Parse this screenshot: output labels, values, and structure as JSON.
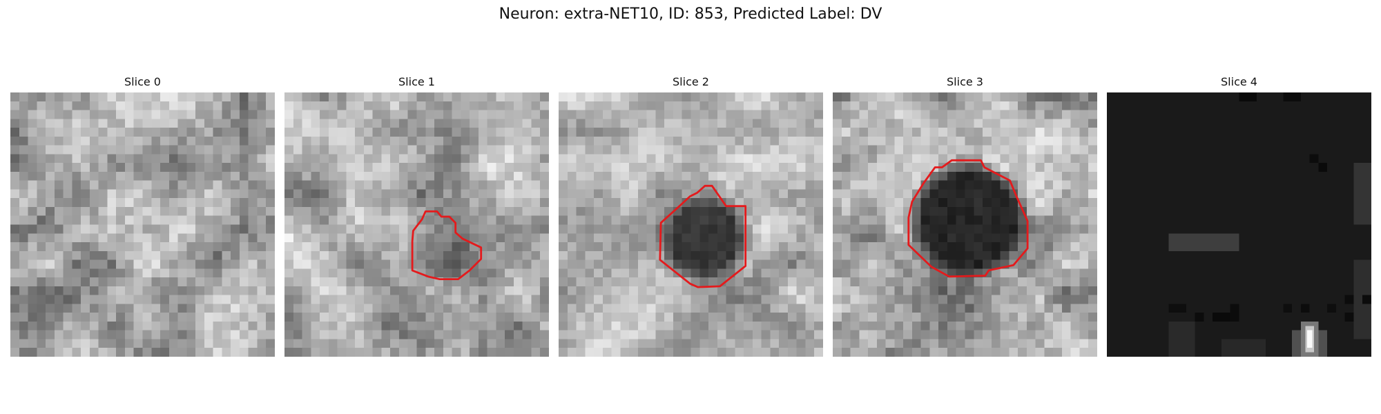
{
  "figure": {
    "title": "Neuron: extra-NET10, ID: 853, Predicted Label: DV"
  },
  "slices": [
    {
      "title": "Slice 0",
      "has_contour": false,
      "kind": "texture",
      "mean": 160,
      "contrast": 55,
      "seed": 11
    },
    {
      "title": "Slice 1",
      "has_contour": true,
      "kind": "texture",
      "mean": 170,
      "contrast": 50,
      "seed": 23
    },
    {
      "title": "Slice 2",
      "has_contour": true,
      "kind": "texture",
      "mean": 175,
      "contrast": 45,
      "seed": 37
    },
    {
      "title": "Slice 3",
      "has_contour": true,
      "kind": "texture",
      "mean": 165,
      "contrast": 55,
      "seed": 41
    },
    {
      "title": "Slice 4",
      "has_contour": false,
      "kind": "dark",
      "mean": 26,
      "contrast": 8,
      "seed": 53
    }
  ],
  "colors": {
    "contour": "#e41a1c",
    "background": "#ffffff"
  }
}
